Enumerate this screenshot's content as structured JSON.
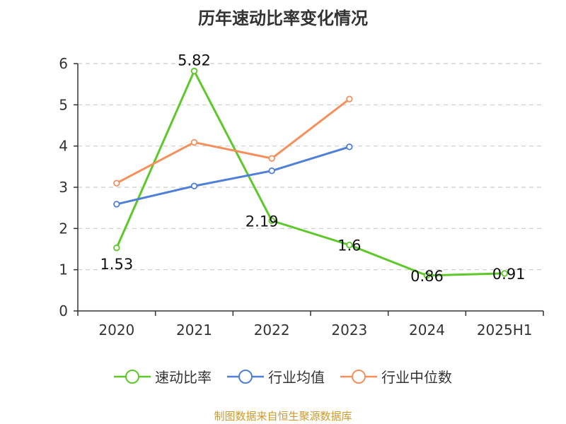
{
  "title": "历年速动比率变化情况",
  "footer": {
    "source": "制图数据来自恒生聚源数据库",
    "color": "#c99a2e"
  },
  "colors": {
    "axis": "#333333",
    "grid": "#cccccc"
  },
  "chart_data": {
    "type": "line",
    "title": "历年速动比率变化情况",
    "categories": [
      "2020",
      "2021",
      "2022",
      "2023",
      "2024",
      "2025H1"
    ],
    "ylim": [
      0,
      6
    ],
    "yticks": [
      0,
      1,
      2,
      3,
      4,
      5,
      6
    ],
    "grid": true,
    "legend_position": "bottom",
    "series": [
      {
        "name": "速动比率",
        "color": "#5ec82a",
        "values": [
          1.53,
          5.82,
          2.19,
          1.6,
          0.86,
          0.91
        ],
        "labels": [
          "1.53",
          "5.82",
          "2.19",
          "1.6",
          "0.86",
          "0.91"
        ],
        "show_labels": true
      },
      {
        "name": "行业均值",
        "color": "#4f7fd6",
        "values": [
          2.59,
          3.03,
          3.4,
          3.98,
          null,
          null
        ],
        "show_labels": false
      },
      {
        "name": "行业中位数",
        "color": "#f5905c",
        "values": [
          3.1,
          4.09,
          3.7,
          5.14,
          null,
          null
        ],
        "show_labels": false
      }
    ]
  }
}
